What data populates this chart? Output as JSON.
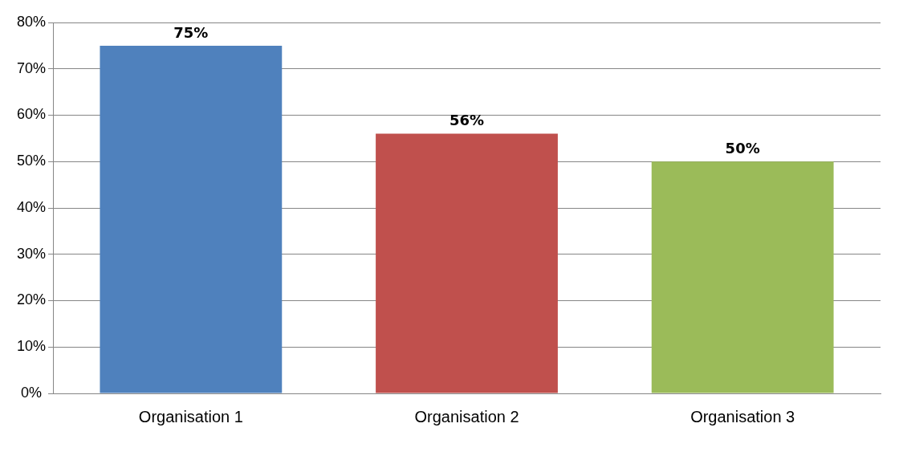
{
  "chart_data": {
    "type": "bar",
    "categories": [
      "Organisation 1",
      "Organisation 2",
      "Organisation 3"
    ],
    "values": [
      75,
      56,
      50
    ],
    "colors": [
      "#4f81bd",
      "#c0504d",
      "#9bbb59"
    ],
    "ylim": [
      0,
      80
    ],
    "yticks": [
      {
        "value": 0,
        "label": "0%"
      },
      {
        "value": 10,
        "label": "10%"
      },
      {
        "value": 20,
        "label": "20%"
      },
      {
        "value": 30,
        "label": "30%"
      },
      {
        "value": 40,
        "label": "40%"
      },
      {
        "value": 50,
        "label": "50%"
      },
      {
        "value": 60,
        "label": "60%"
      },
      {
        "value": 70,
        "label": "70%"
      },
      {
        "value": 80,
        "label": "80%"
      }
    ],
    "value_labels": [
      "75%",
      "56%",
      "50%"
    ],
    "grid": "y",
    "legend": false
  }
}
